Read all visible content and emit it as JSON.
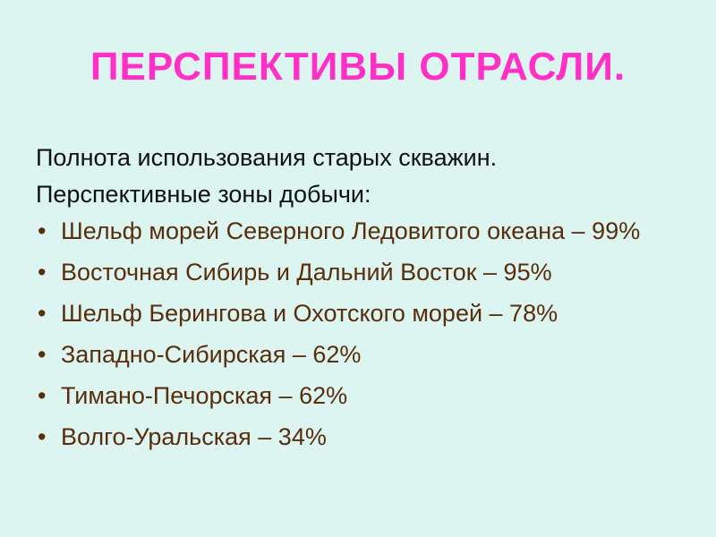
{
  "title": "ПЕРСПЕКТИВЫ ОТРАСЛИ.",
  "lines": [
    "Полнота использования старых скважин.",
    "Перспективные зоны добычи:"
  ],
  "bullets": [
    "Шельф морей Северного Ледовитого океана – 99%",
    "Восточная Сибирь и Дальний Восток – 95%",
    "Шельф Берингова и Охотского морей – 78%",
    "Западно-Сибирская – 62%",
    "Тимано-Печорская – 62%",
    "Волго-Уральская – 34%"
  ],
  "colors": {
    "background": "#dcf5f0",
    "title": "#ff2fc8",
    "bullet_text": "#5a2d0c"
  }
}
